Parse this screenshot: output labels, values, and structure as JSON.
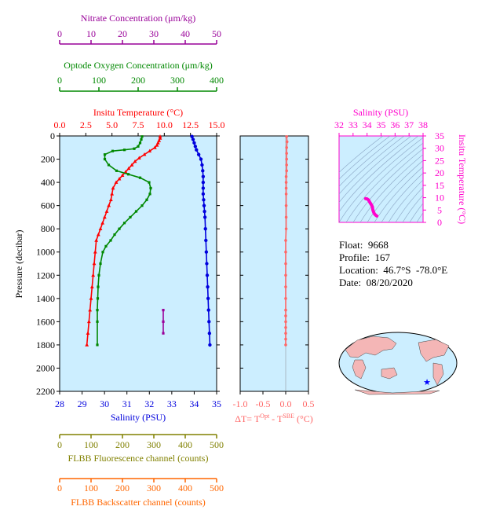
{
  "info": {
    "float": "Float:  9668",
    "profile": "Profile:  167",
    "location": "Location:  46.7°S  -78.0°E",
    "date": "Date:  08/20/2020"
  },
  "colors": {
    "temperature": "#ff0000",
    "salinity": "#0000dd",
    "oxygen": "#008800",
    "nitrate": "#990099",
    "fluorescence": "#808000",
    "backscatter": "#ff6600",
    "delta": "#ff6666",
    "ts": "#ff00cc",
    "panel_bg": "#cceeff"
  },
  "chart_data": [
    {
      "type": "line",
      "panel": "main-profile",
      "ylabel": "Pressure (decibar)",
      "ylim": [
        2200,
        0
      ],
      "yticks": [
        "0",
        "200",
        "400",
        "600",
        "800",
        "1000",
        "1200",
        "1400",
        "1600",
        "1800",
        "2000",
        "2200"
      ],
      "axes": {
        "nitrate": {
          "label": "Nitrate Concentration (μm/kg)",
          "range": [
            0,
            50
          ],
          "ticks": [
            "0",
            "10",
            "20",
            "30",
            "40",
            "50"
          ]
        },
        "oxygen": {
          "label": "Optode Oxygen Concentration (μm/kg)",
          "range": [
            0,
            400
          ],
          "ticks": [
            "0",
            "100",
            "200",
            "300",
            "400"
          ]
        },
        "temperature": {
          "label": "Insitu Temperature (°C)",
          "range": [
            0,
            15
          ],
          "ticks": [
            "0.0",
            "2.5",
            "5.0",
            "7.5",
            "10.0",
            "12.5",
            "15.0"
          ]
        },
        "salinity": {
          "label": "Salinity (PSU)",
          "range": [
            28,
            35
          ],
          "ticks": [
            "28",
            "29",
            "30",
            "31",
            "32",
            "33",
            "34",
            "35"
          ]
        },
        "fluorescence": {
          "label": "FLBB Fluorescence channel (counts)",
          "range": [
            0,
            500
          ],
          "ticks": [
            "0",
            "100",
            "200",
            "300",
            "400",
            "500"
          ]
        },
        "backscatter": {
          "label": "FLBB Backscatter channel (counts)",
          "range": [
            0,
            500
          ],
          "ticks": [
            "0",
            "100",
            "200",
            "300",
            "400",
            "500"
          ]
        }
      },
      "series": [
        {
          "name": "temperature",
          "x": [
            9.6,
            9.6,
            9.5,
            9.4,
            9.3,
            9.1,
            8.6,
            8.1,
            7.6,
            7.2,
            6.9,
            6.6,
            6.3,
            6.0,
            5.7,
            5.4,
            5.1,
            5.0,
            4.9,
            4.7,
            4.5,
            4.3,
            4.1,
            3.9,
            3.7,
            3.5,
            3.4,
            3.3,
            3.2,
            3.1,
            3.0,
            2.9,
            2.8,
            2.7,
            2.6
          ],
          "y": [
            5,
            20,
            40,
            60,
            80,
            100,
            130,
            160,
            190,
            220,
            250,
            280,
            310,
            340,
            370,
            400,
            450,
            500,
            550,
            600,
            650,
            700,
            750,
            800,
            850,
            900,
            1000,
            1100,
            1200,
            1300,
            1400,
            1500,
            1600,
            1700,
            1800
          ]
        },
        {
          "name": "salinity",
          "x": [
            33.9,
            33.95,
            34.0,
            34.05,
            34.1,
            34.2,
            34.3,
            34.35,
            34.38,
            34.4,
            34.4,
            34.4,
            34.4,
            34.42,
            34.44,
            34.46,
            34.48,
            34.5,
            34.52,
            34.54,
            34.56,
            34.58,
            34.6,
            34.62,
            34.64,
            34.66,
            34.68,
            34.7
          ],
          "y": [
            5,
            30,
            60,
            90,
            120,
            160,
            200,
            250,
            300,
            350,
            400,
            450,
            500,
            550,
            600,
            650,
            700,
            800,
            900,
            1000,
            1100,
            1200,
            1300,
            1400,
            1500,
            1600,
            1700,
            1800
          ]
        },
        {
          "name": "oxygen",
          "x": [
            210,
            208,
            205,
            200,
            190,
            165,
            135,
            115,
            115,
            125,
            145,
            175,
            205,
            228,
            232,
            230,
            222,
            210,
            195,
            180,
            165,
            152,
            140,
            130,
            118,
            110,
            104,
            100,
            98,
            97,
            96,
            96,
            96
          ],
          "y": [
            5,
            30,
            60,
            90,
            110,
            120,
            130,
            160,
            200,
            250,
            300,
            330,
            360,
            400,
            450,
            500,
            550,
            600,
            650,
            700,
            750,
            800,
            850,
            900,
            950,
            1000,
            1100,
            1200,
            1300,
            1400,
            1500,
            1600,
            1800
          ]
        },
        {
          "name": "nitrate",
          "x": [
            33,
            33,
            33
          ],
          "y": [
            1500,
            1600,
            1700
          ]
        }
      ]
    },
    {
      "type": "line",
      "panel": "delta-t",
      "xlabel": "ΔT= T^Opt - T^SBE (°C)",
      "xrange": [
        -1.0,
        0.5
      ],
      "xticks": [
        "-1.0",
        "-0.5",
        "0.0",
        "0.5"
      ],
      "ylim": [
        2200,
        0
      ],
      "series": [
        {
          "name": "delta",
          "x": [
            0.02,
            0.03,
            0.02,
            0.02,
            0.02,
            0.02,
            0.02,
            0.01,
            0.01,
            0.01,
            0.01,
            0.01,
            0.01,
            0.01,
            0.0,
            0.0,
            0.0,
            0.0,
            0.0,
            0.0,
            0.0,
            0.0,
            0.0,
            0.0,
            0.0,
            0.0,
            0.0
          ],
          "y": [
            5,
            50,
            100,
            150,
            200,
            250,
            300,
            350,
            400,
            450,
            500,
            600,
            700,
            800,
            900,
            1000,
            1100,
            1200,
            1300,
            1400,
            1500,
            1550,
            1600,
            1650,
            1700,
            1750,
            1800
          ]
        }
      ]
    },
    {
      "type": "scatter",
      "panel": "ts-diagram",
      "xlabel": "Salinity (PSU)",
      "ylabel": "Insitu Temperature (°C)",
      "xrange": [
        32,
        38
      ],
      "yrange": [
        0,
        35
      ],
      "xticks": [
        "32",
        "33",
        "34",
        "35",
        "36",
        "37",
        "38"
      ],
      "yticks": [
        "0",
        "5",
        "10",
        "15",
        "20",
        "25",
        "30",
        "35"
      ],
      "series": [
        {
          "name": "ts",
          "x": [
            33.9,
            34.0,
            34.1,
            34.2,
            34.3,
            34.38,
            34.4,
            34.42,
            34.46,
            34.5,
            34.55,
            34.6,
            34.65,
            34.7
          ],
          "y": [
            9.6,
            9.5,
            9.1,
            8.1,
            7.2,
            6.3,
            5.4,
            4.9,
            4.3,
            3.7,
            3.3,
            3.0,
            2.8,
            2.6
          ]
        }
      ]
    }
  ]
}
